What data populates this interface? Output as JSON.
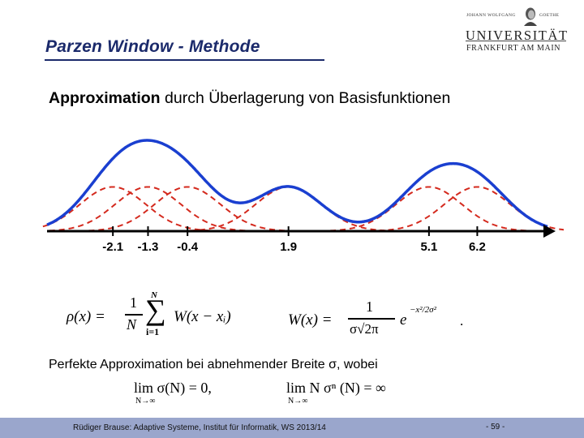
{
  "slide": {
    "title": "Parzen Window - Methode"
  },
  "logo": {
    "top_left": "JOHANN WOLFGANG",
    "top_right": "GOETHE",
    "main": "UNIVERSITÄT",
    "sub": "FRANKFURT AM MAIN"
  },
  "heading": {
    "bold": "Approximation",
    "rest": " durch Überlagerung von Basisfunktionen"
  },
  "figure": {
    "tick_labels": [
      "-2.1",
      "-1.3",
      "-0.4",
      "1.9",
      "5.1",
      "6.2"
    ],
    "centers": [
      -2.1,
      -1.3,
      -0.4,
      1.9,
      5.1,
      6.2
    ],
    "x_range": [
      -3.6,
      7.8
    ],
    "sigma": 0.75,
    "colors": {
      "sum": "#1a3fd0",
      "basis": "#d42a1e",
      "axis": "#000000"
    }
  },
  "formulas": {
    "rho_lhs": "ρ(x) =",
    "frac_num": "1",
    "frac_den": "N",
    "sum_top": "N",
    "sum_bottom": "i=1",
    "rho_rhs": "W(x − xᵢ)",
    "w_lhs": "W(x) =",
    "w_num": "1",
    "w_den": "σ√2π",
    "w_exp_base": "e",
    "w_exp": "−x²/2σ²",
    "w_dot": ".",
    "lim1": "lim σ(N) = 0,",
    "lim1_sub": "N→∞",
    "lim2": "lim N σⁿ (N) = ∞",
    "lim2_sub": "N→∞"
  },
  "text": {
    "perfekte": "Perfekte Approximation bei abnehmender Breite σ, wobei"
  },
  "footer": {
    "credit": "Rüdiger Brause: Adaptive Systeme, Institut für Informatik, WS 2013/14",
    "page": "- 59 -",
    "bar_color": "#9aa6cc"
  }
}
